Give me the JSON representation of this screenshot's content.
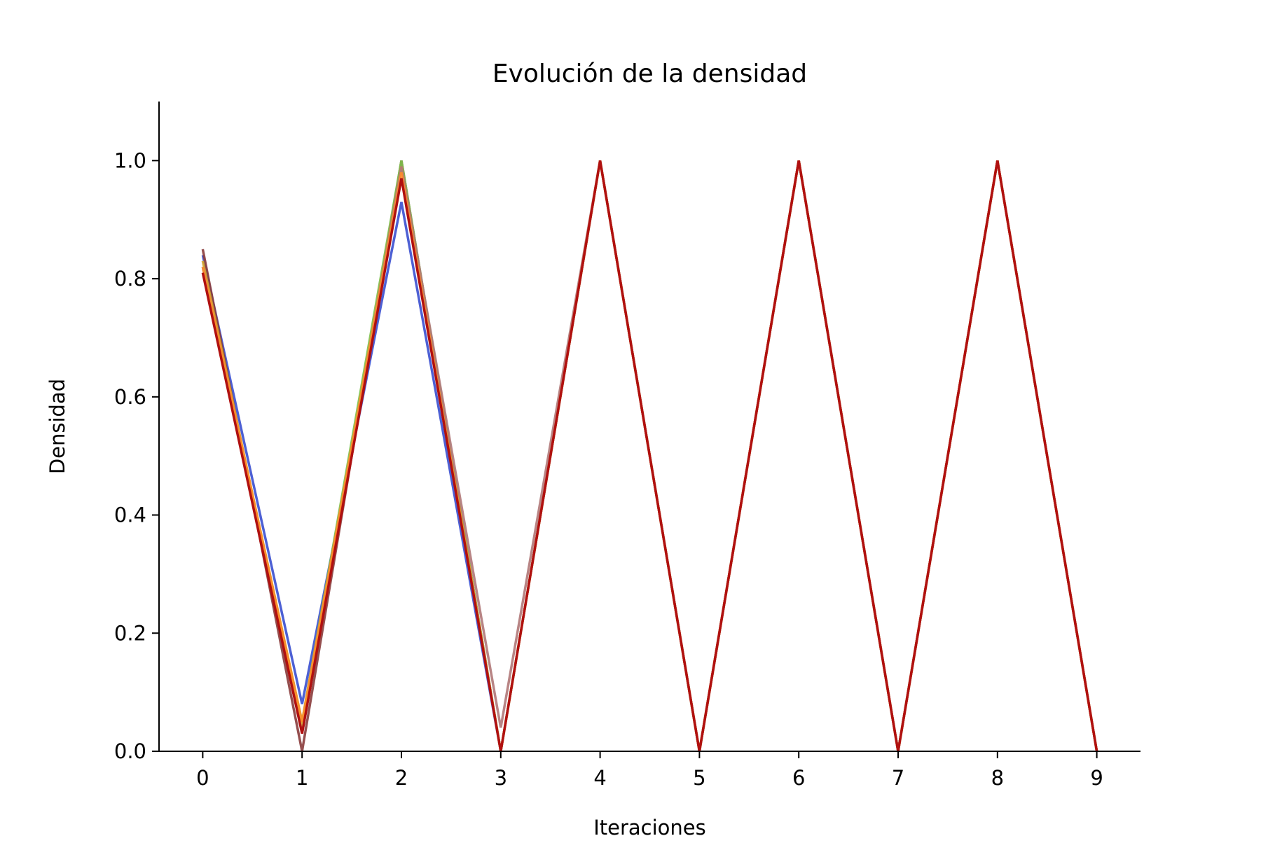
{
  "chart_data": {
    "type": "line",
    "title": "Evolución de la densidad",
    "xlabel": "Iteraciones",
    "ylabel": "Densidad",
    "xlim": [
      -0.44,
      9.44
    ],
    "ylim": [
      0,
      1.1
    ],
    "x_ticks": [
      0,
      1,
      2,
      3,
      4,
      5,
      6,
      7,
      8,
      9
    ],
    "x_tick_labels": [
      "0",
      "1",
      "2",
      "3",
      "4",
      "5",
      "6",
      "7",
      "8",
      "9"
    ],
    "y_ticks": [
      0,
      0.2,
      0.4,
      0.6,
      0.8,
      1.0
    ],
    "y_tick_labels": [
      "0.0",
      "0.2",
      "0.4",
      "0.6",
      "0.8",
      "1.0"
    ],
    "grid": false,
    "legend": false,
    "x": [
      0,
      1,
      2,
      3,
      4,
      5,
      6,
      7,
      8,
      9
    ],
    "series": [
      {
        "color": "#3a4fcf",
        "opacity": 0.9,
        "values": [
          0.84,
          0.08,
          0.93,
          0.0,
          1.0,
          0.0,
          1.0,
          0.0,
          1.0,
          0.0
        ]
      },
      {
        "color": "#8a3c3c",
        "opacity": 0.9,
        "values": [
          0.85,
          0.0,
          1.0,
          0.0,
          1.0,
          0.0,
          1.0,
          0.0,
          1.0,
          0.0
        ]
      },
      {
        "color": "#7cc04a",
        "opacity": 0.9,
        "values": [
          0.82,
          0.05,
          1.0,
          0.0,
          1.0,
          0.0,
          1.0,
          0.0,
          1.0,
          0.0
        ]
      },
      {
        "color": "#d4a62a",
        "opacity": 0.9,
        "values": [
          0.83,
          0.04,
          0.99,
          0.0,
          1.0,
          0.0,
          1.0,
          0.0,
          1.0,
          0.0
        ]
      },
      {
        "color": "#b07878",
        "opacity": 0.9,
        "values": [
          0.82,
          0.03,
          0.99,
          0.04,
          1.0,
          0.0,
          1.0,
          0.0,
          1.0,
          0.0
        ]
      },
      {
        "color": "#ff8c2a",
        "opacity": 0.9,
        "values": [
          0.82,
          0.05,
          0.98,
          0.0,
          1.0,
          0.0,
          1.0,
          0.0,
          1.0,
          0.0
        ]
      },
      {
        "color": "#b01010",
        "opacity": 1.0,
        "values": [
          0.81,
          0.03,
          0.97,
          0.0,
          1.0,
          0.0,
          1.0,
          0.0,
          1.0,
          0.0
        ]
      }
    ]
  }
}
